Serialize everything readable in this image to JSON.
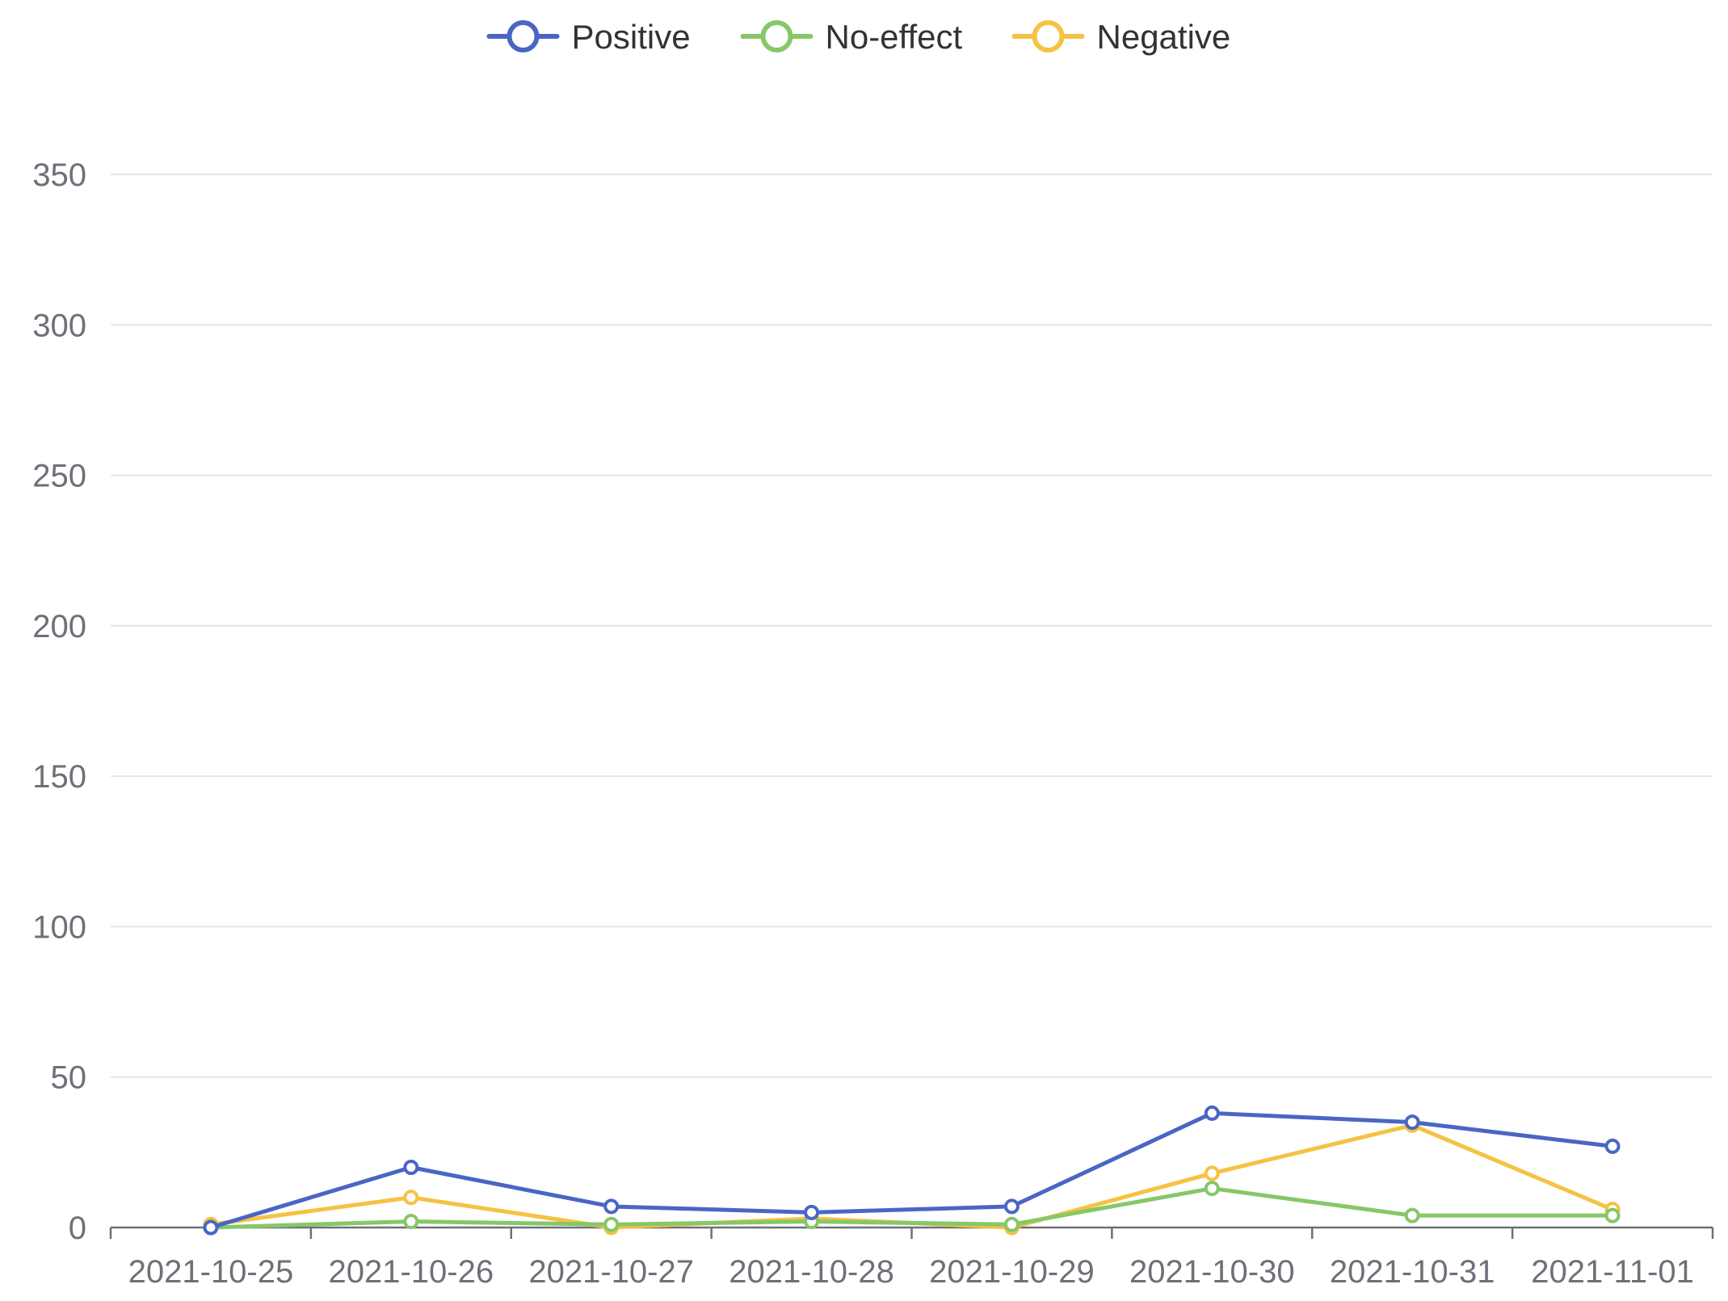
{
  "chart_data": {
    "type": "line",
    "title": "",
    "xlabel": "",
    "ylabel": "",
    "categories": [
      "2021-10-25",
      "2021-10-26",
      "2021-10-27",
      "2021-10-28",
      "2021-10-29",
      "2021-10-30",
      "2021-10-31",
      "2021-11-01"
    ],
    "ylim": [
      0,
      350
    ],
    "yticks": [
      0,
      50,
      100,
      150,
      200,
      250,
      300,
      350
    ],
    "grid": true,
    "legend_position": "top-center",
    "series": [
      {
        "name": "Positive",
        "color": "#4a66c4",
        "values": [
          0,
          20,
          7,
          5,
          7,
          38,
          35,
          27
        ]
      },
      {
        "name": "No-effect",
        "color": "#86c767",
        "values": [
          0,
          2,
          1,
          2,
          1,
          13,
          4,
          4
        ]
      },
      {
        "name": "Negative",
        "color": "#f5c242",
        "values": [
          1,
          10,
          0,
          3,
          0,
          18,
          34,
          6
        ]
      }
    ]
  }
}
